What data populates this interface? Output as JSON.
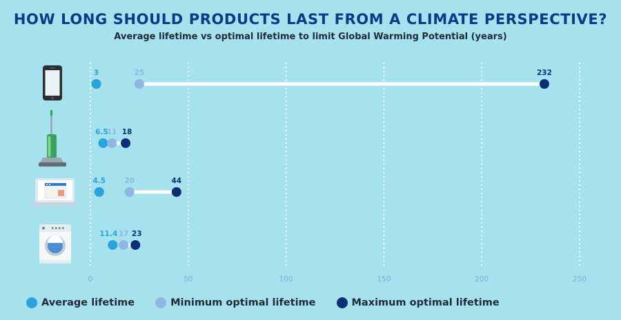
{
  "header": {
    "title": "HOW LONG SHOULD PRODUCTS LAST FROM A CLIMATE PERSPECTIVE?",
    "subtitle": "Average lifetime vs optimal lifetime to limit Global Warming Potential (years)"
  },
  "legend": {
    "items": [
      {
        "label": "Average lifetime",
        "color": "#29a3dc"
      },
      {
        "label": "Minimum optimal lifetime",
        "color": "#8fb6e3"
      },
      {
        "label": "Maximum optimal lifetime",
        "color": "#0b2f73"
      }
    ]
  },
  "colors": {
    "background": "#a6e1ee",
    "title": "#0a3b86",
    "range_line": "#ffffff",
    "grid": "#ffffff",
    "tick_label": "#7fb0c8"
  },
  "chart_data": {
    "type": "dumbbell",
    "title": "HOW LONG SHOULD PRODUCTS LAST FROM A CLIMATE PERSPECTIVE?",
    "subtitle": "Average lifetime vs optimal lifetime to limit Global Warming Potential (years)",
    "xlim": [
      0,
      250
    ],
    "xticks": [
      0,
      50,
      100,
      150,
      200,
      250
    ],
    "grid": true,
    "legend_position": "bottom",
    "categories": [
      {
        "icon": "smartphone-icon"
      },
      {
        "icon": "vacuum-cleaner-icon"
      },
      {
        "icon": "laptop-icon"
      },
      {
        "icon": "washing-machine-icon"
      }
    ],
    "series": [
      {
        "name": "Average lifetime",
        "values": [
          3,
          6.5,
          4.5,
          11.4
        ],
        "labels": [
          "3",
          "6.5",
          "4.5",
          "11.4"
        ]
      },
      {
        "name": "Minimum optimal lifetime",
        "values": [
          25,
          11,
          20,
          17
        ],
        "labels": [
          "25",
          "11",
          "20",
          "17"
        ]
      },
      {
        "name": "Maximum optimal lifetime",
        "values": [
          232,
          18,
          44,
          23
        ],
        "labels": [
          "232",
          "18",
          "44",
          "23"
        ]
      }
    ]
  }
}
